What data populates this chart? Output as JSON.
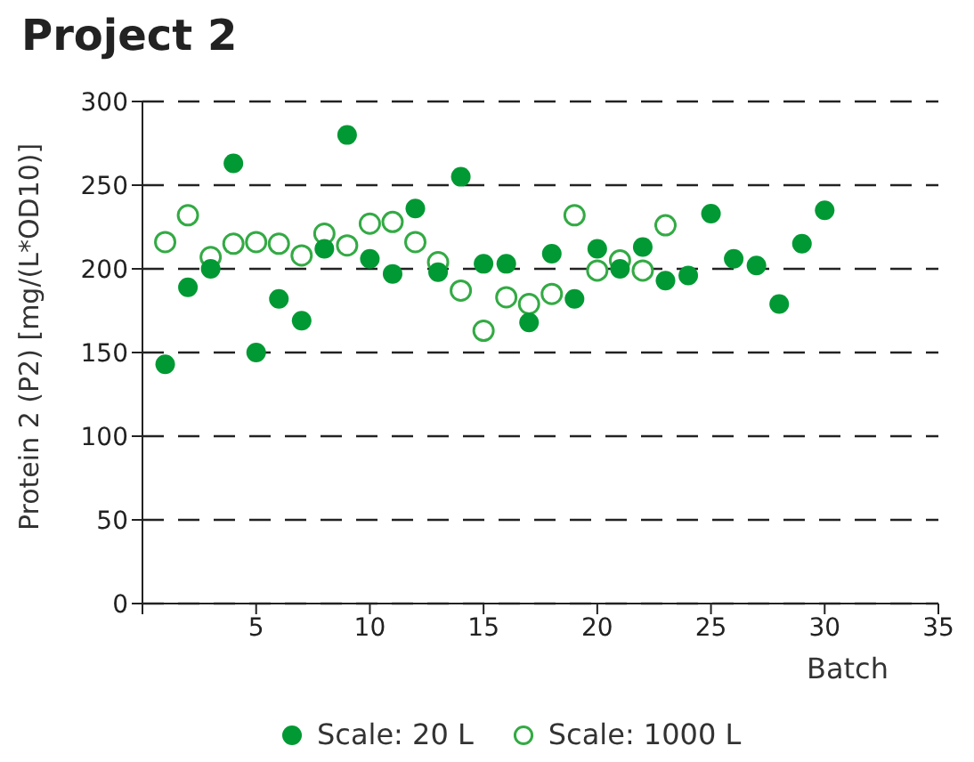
{
  "chart_data": {
    "type": "scatter",
    "title": "Project 2",
    "xlabel": "Batch",
    "ylabel": "Protein 2 (P2) [mg/(L*OD10)]",
    "xlim": [
      0,
      35
    ],
    "xticks": [
      {
        "value": 0,
        "label": null
      },
      5,
      10,
      15,
      20,
      25,
      30,
      35
    ],
    "ylim": [
      0,
      300
    ],
    "yticks": [
      0,
      50,
      100,
      150,
      200,
      250,
      300
    ],
    "grid": "y",
    "legend": "bottom",
    "marker": "circle",
    "series": [
      {
        "name": "Scale: 20 L",
        "color": "#009933",
        "x": [
          1,
          2,
          3,
          4,
          5,
          6,
          7,
          8,
          9,
          10,
          11,
          12,
          13,
          14,
          15,
          16,
          17,
          18,
          19,
          20,
          21,
          22,
          23,
          24,
          25,
          26,
          27,
          28,
          29,
          30
        ],
        "values": [
          143,
          189,
          200,
          263,
          150,
          182,
          169,
          212,
          280,
          206,
          197,
          236,
          198,
          255,
          203,
          203,
          168,
          209,
          182,
          212,
          200,
          213,
          193,
          196,
          233,
          206,
          202,
          179,
          215,
          235
        ]
      },
      {
        "name": "Scale: 1000 L",
        "color": "#33aa44",
        "x": [
          1,
          2,
          3,
          4,
          5,
          6,
          7,
          8,
          9,
          10,
          11,
          12,
          13,
          14,
          15,
          16,
          17,
          18,
          19,
          20,
          21,
          22,
          23
        ],
        "values": [
          216,
          232,
          207,
          215,
          216,
          215,
          208,
          221,
          214,
          227,
          228,
          216,
          204,
          187,
          163,
          183,
          179,
          185,
          232,
          199,
          205,
          199,
          226
        ]
      }
    ]
  }
}
